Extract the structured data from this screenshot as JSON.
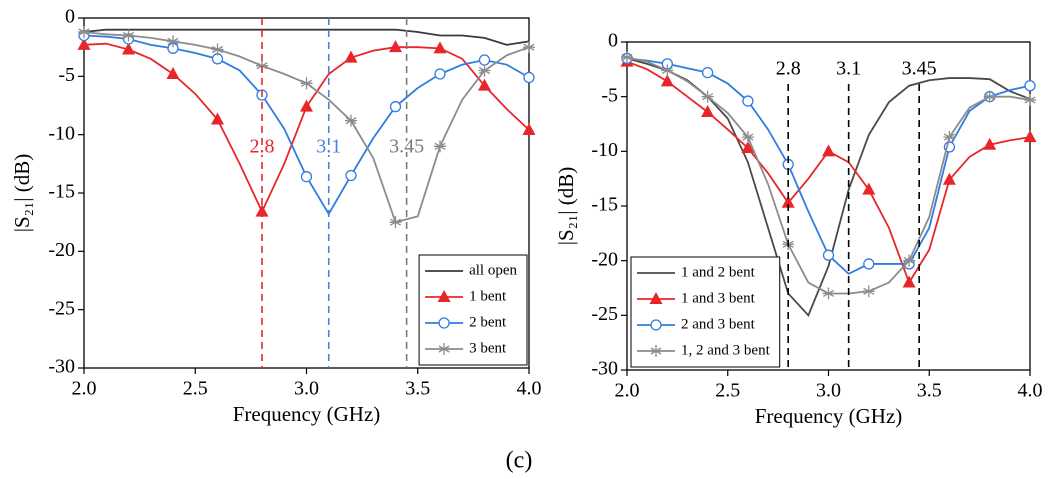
{
  "caption": "(c)",
  "chart_data": [
    {
      "type": "line",
      "xlabel": "Frequency (GHz)",
      "ylabel": "|S₂₁| (dB)",
      "xlim": [
        2,
        4
      ],
      "ylim": [
        -30,
        0
      ],
      "xticks": [
        {
          "value": 2,
          "label": "2.0"
        },
        {
          "value": 2.5,
          "label": "2.5"
        },
        {
          "value": 3,
          "label": "3.0"
        },
        {
          "value": 3.5,
          "label": "3.5"
        },
        {
          "value": 4,
          "label": "4.0"
        }
      ],
      "yticks": [
        0,
        -5,
        -10,
        -15,
        -20,
        -25,
        -30
      ],
      "legend": "lower right",
      "vlines": [
        {
          "value": 2.8,
          "color": "#e8262a"
        },
        {
          "value": 3.1,
          "color": "#4a7fdc"
        },
        {
          "value": 3.45,
          "color": "#7a7a7a"
        }
      ],
      "x": [
        2.0,
        2.1,
        2.2,
        2.3,
        2.4,
        2.5,
        2.6,
        2.7,
        2.8,
        2.9,
        3.0,
        3.1,
        3.2,
        3.3,
        3.4,
        3.5,
        3.6,
        3.7,
        3.8,
        3.9,
        4.0
      ],
      "series": [
        {
          "name": "all open",
          "color": "#3a3a3a",
          "marker": "none",
          "values": [
            -1.2,
            -1,
            -1,
            -1,
            -1,
            -1,
            -1,
            -1,
            -1,
            -1,
            -1,
            -1,
            -1,
            -1,
            -1,
            -1.2,
            -1.5,
            -1.5,
            -1.7,
            -2.3,
            -2
          ]
        },
        {
          "name": "1 bent",
          "color": "#e8262a",
          "marker": "triangle",
          "values": [
            -2.3,
            -2.2,
            -2.7,
            -3.5,
            -4.8,
            -6.5,
            -8.7,
            -12.5,
            -16.6,
            -12.5,
            -7.6,
            -4.8,
            -3.4,
            -2.8,
            -2.5,
            -2.5,
            -2.6,
            -3.5,
            -5.8,
            -7.8,
            -9.6
          ]
        },
        {
          "name": "2 bent",
          "color": "#2f7de1",
          "marker": "circle",
          "values": [
            -1.5,
            -1.6,
            -1.8,
            -2.3,
            -2.6,
            -3,
            -3.5,
            -4.5,
            -6.6,
            -9.5,
            -13.6,
            -16.8,
            -13.5,
            -10.3,
            -7.6,
            -6,
            -4.8,
            -4,
            -3.6,
            -4,
            -5.1
          ]
        },
        {
          "name": "3 bent",
          "color": "#8c8c8c",
          "marker": "star",
          "values": [
            -1.2,
            -1.4,
            -1.5,
            -1.7,
            -2,
            -2.3,
            -2.7,
            -3.3,
            -4.1,
            -4.8,
            -5.6,
            -7,
            -8.8,
            -12,
            -17.5,
            -17,
            -11,
            -7,
            -4.5,
            -3.2,
            -2.5
          ]
        }
      ]
    },
    {
      "type": "line",
      "xlabel": "Frequency (GHz)",
      "ylabel": "|S₂₁| (dB)",
      "xlim": [
        2,
        4
      ],
      "ylim": [
        -30,
        0
      ],
      "xticks": [
        {
          "value": 2,
          "label": "2.0"
        },
        {
          "value": 2.5,
          "label": "2.5"
        },
        {
          "value": 3,
          "label": "3.0"
        },
        {
          "value": 3.5,
          "label": "3.5"
        },
        {
          "value": 4,
          "label": "4.0"
        }
      ],
      "yticks": [
        0,
        -5,
        -10,
        -15,
        -20,
        -25,
        -30
      ],
      "legend": "lower left",
      "vlines": [
        {
          "value": 2.8,
          "color": "#000000"
        },
        {
          "value": 3.1,
          "color": "#000000"
        },
        {
          "value": 3.45,
          "color": "#000000"
        }
      ],
      "x": [
        2.0,
        2.1,
        2.2,
        2.3,
        2.4,
        2.5,
        2.6,
        2.7,
        2.8,
        2.9,
        3.0,
        3.1,
        3.2,
        3.3,
        3.4,
        3.5,
        3.6,
        3.7,
        3.8,
        3.9,
        4.0
      ],
      "series": [
        {
          "name": "1 and 2 bent",
          "color": "#4a4a4a",
          "marker": "none",
          "values": [
            -1.5,
            -2,
            -2.6,
            -3.5,
            -5,
            -7,
            -11,
            -17,
            -23,
            -25,
            -20.5,
            -13.5,
            -8.5,
            -5.5,
            -4,
            -3.5,
            -3.3,
            -3.3,
            -3.4,
            -4.5,
            -5.2
          ]
        },
        {
          "name": "1 and 3 bent",
          "color": "#e8262a",
          "marker": "triangle",
          "values": [
            -1.8,
            -2.5,
            -3.6,
            -5,
            -6.4,
            -8,
            -9.7,
            -12,
            -14.7,
            -12.5,
            -10,
            -11,
            -13.5,
            -17,
            -22,
            -19,
            -12.6,
            -10.5,
            -9.4,
            -9,
            -8.7
          ]
        },
        {
          "name": "2 and 3 bent",
          "color": "#2f7de1",
          "marker": "circle",
          "values": [
            -1.5,
            -1.7,
            -2,
            -2.4,
            -2.8,
            -3.8,
            -5.4,
            -8,
            -11.2,
            -15.5,
            -19.5,
            -21.2,
            -20.3,
            -20.3,
            -20.3,
            -17,
            -9.6,
            -6.3,
            -5,
            -4.4,
            -4
          ]
        },
        {
          "name": "1, 2 and 3 bent",
          "color": "#8c8c8c",
          "marker": "star",
          "values": [
            -1.4,
            -1.8,
            -2.6,
            -3.6,
            -5,
            -6.5,
            -8.7,
            -13,
            -18.5,
            -22,
            -23,
            -23,
            -22.8,
            -22,
            -20,
            -16,
            -8.7,
            -6,
            -5,
            -5,
            -5.3
          ]
        }
      ]
    }
  ]
}
